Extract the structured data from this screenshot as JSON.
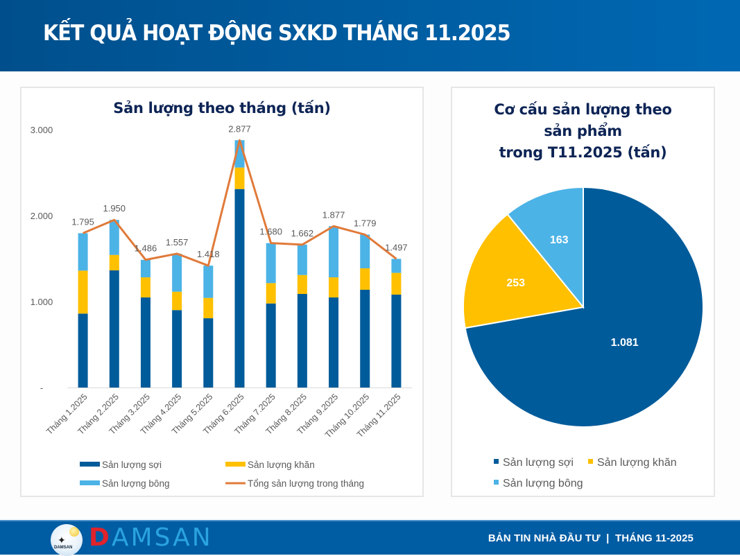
{
  "header": {
    "title": "KẾT QUẢ HOẠT ĐỘNG SXKD THÁNG 11.2025"
  },
  "colors": {
    "soi": "#005b9a",
    "khan": "#ffc000",
    "bong": "#4cb3e6",
    "total": "#e07a3a",
    "title": "#0d2455",
    "axis_text": "#595959"
  },
  "chart_data": [
    {
      "type": "bar",
      "stacked": true,
      "title": "Sản lượng theo tháng (tấn)",
      "xlabel": "",
      "ylabel": "",
      "ylim": [
        0,
        3000
      ],
      "yticks": [
        0,
        1000,
        2000,
        3000
      ],
      "ytick_labels": [
        "-",
        "1.000",
        "2.000",
        "3.000"
      ],
      "grid": false,
      "legend_position": "bottom",
      "categories": [
        "Tháng 1.2025",
        "Tháng 2.2025",
        "Tháng 3.2025",
        "Tháng 4.2025",
        "Tháng 5.2025",
        "Tháng 6.2025",
        "Tháng 7.2025",
        "Tháng 8.2025",
        "Tháng 9.2025",
        "Tháng 10.2025",
        "Tháng 11.2025"
      ],
      "series": [
        {
          "name": "Sản lượng sợi",
          "type": "bar",
          "values": [
            860,
            1363,
            1048,
            901,
            806,
            2309,
            978,
            1089,
            1048,
            1137,
            1081
          ]
        },
        {
          "name": "Sản lượng khăn",
          "type": "bar",
          "values": [
            500,
            180,
            234,
            214,
            237,
            250,
            237,
            220,
            234,
            250,
            253
          ]
        },
        {
          "name": "Sản lượng bông",
          "type": "bar",
          "values": [
            435,
            407,
            204,
            442,
            375,
            318,
            465,
            353,
            595,
            392,
            163
          ]
        },
        {
          "name": "Tổng sản lượng trong tháng",
          "type": "line",
          "values": [
            1795,
            1950,
            1486,
            1557,
            1418,
            2877,
            1680,
            1662,
            1877,
            1779,
            1497
          ]
        }
      ],
      "data_labels": [
        "1.795",
        "1.950",
        "1.486",
        "1.557",
        "1.418",
        "2.877",
        "1.680",
        "1.662",
        "1.877",
        "1.779",
        "1.497"
      ],
      "legend": [
        "Sản lượng sợi",
        "Sản lượng khăn",
        "Sản lượng bông",
        "Tổng sản lượng trong tháng"
      ]
    },
    {
      "type": "pie",
      "title": "Cơ cấu sản lượng theo sản phẩm trong T11.2025 (tấn)",
      "title_lines": [
        "Cơ cấu sản lượng theo",
        "sản phẩm",
        "trong T11.2025 (tấn)"
      ],
      "legend_position": "bottom",
      "slices": [
        {
          "name": "Sản lượng sợi",
          "value": 1081,
          "label": "1.081"
        },
        {
          "name": "Sản lượng khăn",
          "value": 253,
          "label": "253"
        },
        {
          "name": "Sản lượng bông",
          "value": 163,
          "label": "163"
        }
      ],
      "legend": [
        "Sản lượng sợi",
        "Sản lượng khăn",
        "Sản lượng bông"
      ]
    }
  ],
  "footer": {
    "logo_small_text": "DAMSAN",
    "brand_first": "D",
    "brand_rest": "AMSAN",
    "text": "BẢN TIN NHÀ ĐẦU TƯ  |  THÁNG 11-2025"
  }
}
